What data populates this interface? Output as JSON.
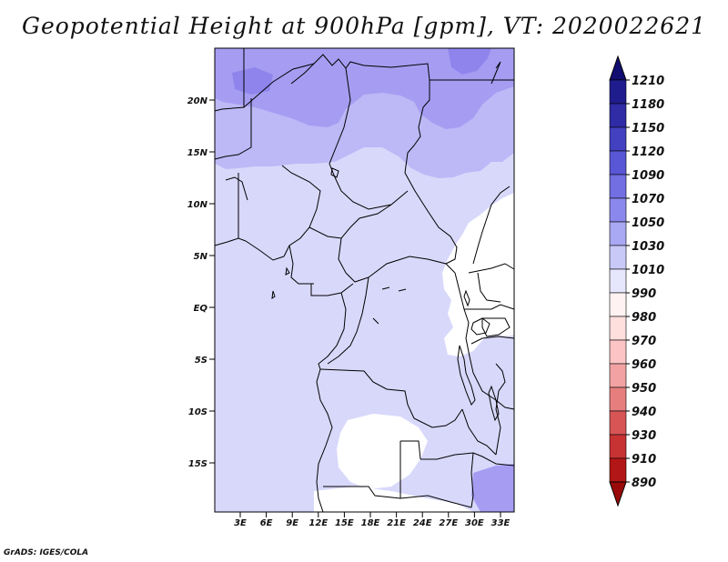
{
  "title": "Geopotential Height at 900hPa [gpm], VT: 2020022621",
  "credit": "GrADS: IGES/COLA",
  "map": {
    "variable": "Geopotential Height",
    "level": "900hPa",
    "units": "gpm",
    "valid_time": "2020022621",
    "lat_labels": [
      "20N",
      "15N",
      "10N",
      "5N",
      "EQ",
      "5S",
      "10S",
      "15S"
    ],
    "lon_labels": [
      "3E",
      "6E",
      "9E",
      "12E",
      "15E",
      "18E",
      "21E",
      "24E",
      "27E",
      "30E",
      "33E"
    ],
    "fill_colors": {
      "darker": "#8f84ec",
      "dark": "#a69df2",
      "mid": "#bdb8f6",
      "light": "#d8d8fb",
      "blank": "#ffffff",
      "border": "#000000"
    }
  },
  "colorbar": {
    "labels": [
      "1210",
      "1180",
      "1150",
      "1120",
      "1090",
      "1070",
      "1050",
      "1030",
      "1010",
      "990",
      "980",
      "970",
      "960",
      "950",
      "940",
      "930",
      "910",
      "890"
    ],
    "colors": [
      "#120d70",
      "#1f1c8e",
      "#2f2ca6",
      "#4341c0",
      "#5957d6",
      "#716fe2",
      "#8a88ec",
      "#a9a8f2",
      "#c9c9f8",
      "#e6e6fd",
      "#fff2f2",
      "#ffdede",
      "#fcc4c4",
      "#f2a2a2",
      "#e67e7e",
      "#d85555",
      "#c73333",
      "#b31616",
      "#9a0a0a"
    ]
  }
}
